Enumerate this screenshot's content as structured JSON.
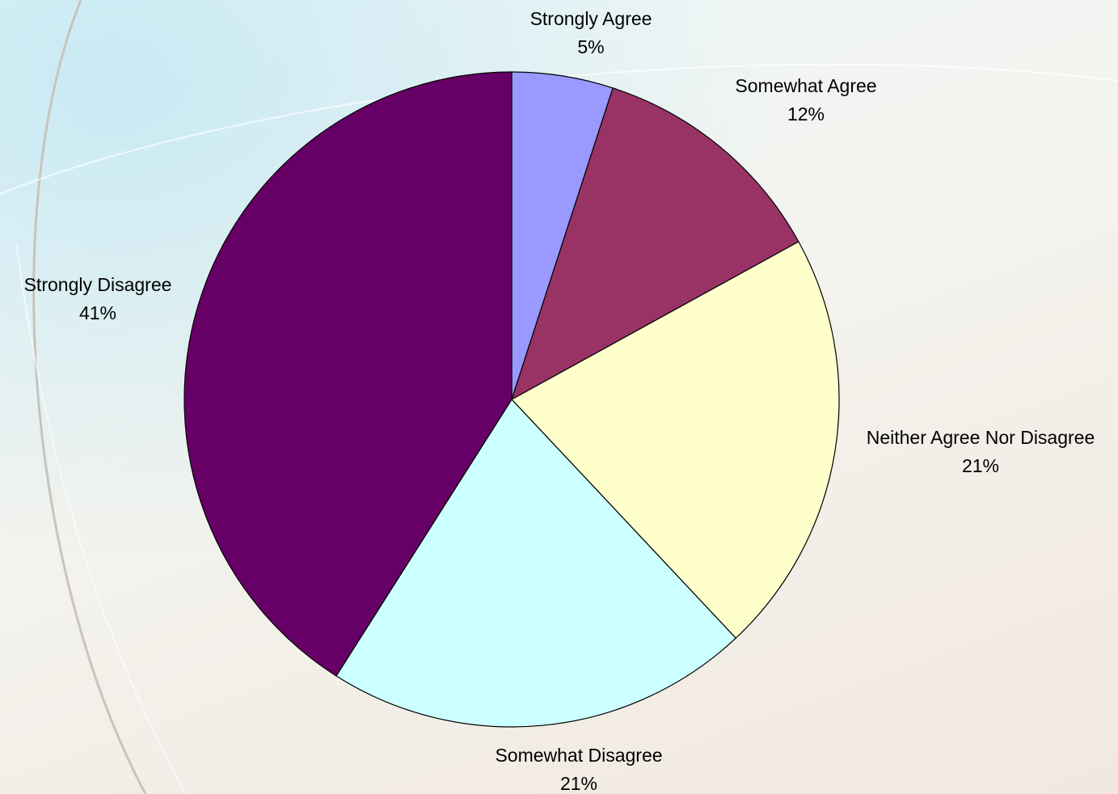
{
  "chart_data": {
    "type": "pie",
    "start_angle_deg": 0,
    "direction": "clockwise",
    "slices": [
      {
        "label": "Strongly Agree",
        "value": 5,
        "value_label": "5%",
        "color": "#9999ff"
      },
      {
        "label": "Somewhat Agree",
        "value": 12,
        "value_label": "12%",
        "color": "#993366"
      },
      {
        "label": "Neither Agree Nor Disagree",
        "value": 21,
        "value_label": "21%",
        "color": "#ffffcc"
      },
      {
        "label": "Somewhat Disagree",
        "value": 21,
        "value_label": "21%",
        "color": "#ccffff"
      },
      {
        "label": "Strongly Disagree",
        "value": 41,
        "value_label": "41%",
        "color": "#660066"
      }
    ],
    "legend": "none",
    "labels": "outside"
  }
}
